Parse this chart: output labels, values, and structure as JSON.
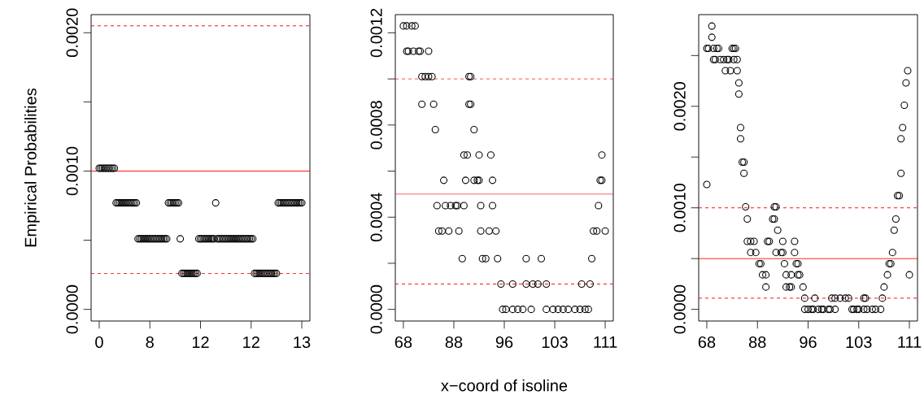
{
  "chart_data": [
    {
      "type": "scatter",
      "ylabel": "Empirical Probabilities",
      "color": "#000000",
      "marker": "circle",
      "categories": [
        "0",
        null,
        null,
        null,
        null,
        null,
        null,
        null,
        null,
        null,
        null,
        null,
        null,
        null,
        null,
        null,
        null,
        null,
        null,
        null,
        null,
        null,
        null,
        null,
        null,
        null,
        null,
        null,
        null,
        null,
        "8",
        null,
        null,
        null,
        null,
        null,
        null,
        null,
        null,
        null,
        null,
        null,
        null,
        null,
        null,
        null,
        null,
        null,
        null,
        null,
        null,
        null,
        null,
        null,
        null,
        null,
        null,
        null,
        null,
        null,
        "12",
        null,
        null,
        null,
        null,
        null,
        null,
        null,
        null,
        null,
        null,
        null,
        null,
        null,
        null,
        null,
        null,
        null,
        null,
        null,
        null,
        null,
        null,
        null,
        null,
        null,
        null,
        null,
        null,
        null,
        "12",
        null,
        null,
        null,
        null,
        null,
        null,
        null,
        null,
        null,
        null,
        null,
        null,
        null,
        null,
        null,
        null,
        null,
        null,
        null,
        null,
        null,
        null,
        null,
        null,
        null,
        null,
        null,
        null,
        null,
        "13"
      ],
      "values": [
        0.00102,
        0.00102,
        0.00102,
        0.00102,
        0.00102,
        0.00102,
        0.00102,
        0.00102,
        0.00102,
        0.00102,
        0.00077,
        0.00077,
        0.00077,
        0.00077,
        0.00077,
        0.00077,
        0.00077,
        0.00077,
        0.00077,
        0.00077,
        0.00077,
        0.00077,
        0.00077,
        0.00051,
        0.00051,
        0.00051,
        0.00051,
        0.00051,
        0.00051,
        0.00051,
        0.00051,
        0.00051,
        0.00051,
        0.00051,
        0.00051,
        0.00051,
        0.00051,
        0.00051,
        0.00051,
        0.00051,
        0.00051,
        0.00077,
        0.00077,
        0.00077,
        0.00077,
        0.00077,
        0.00077,
        0.00077,
        0.00051,
        0.00026,
        0.00026,
        0.00026,
        0.00026,
        0.00026,
        0.00026,
        0.00026,
        0.00026,
        0.00026,
        0.00026,
        0.00051,
        0.00051,
        0.00051,
        0.00051,
        0.00051,
        0.00051,
        0.00051,
        0.00051,
        0.00051,
        0.00051,
        0.00077,
        0.00051,
        0.00051,
        0.00051,
        0.00051,
        0.00051,
        0.00051,
        0.00051,
        0.00051,
        0.00051,
        0.00051,
        0.00051,
        0.00051,
        0.00051,
        0.00051,
        0.00051,
        0.00051,
        0.00051,
        0.00051,
        0.00051,
        0.00051,
        0.00051,
        0.00051,
        0.00026,
        0.00026,
        0.00026,
        0.00026,
        0.00026,
        0.00026,
        0.00026,
        0.00026,
        0.00026,
        0.00026,
        0.00026,
        0.00026,
        0.00026,
        0.00026,
        0.00077,
        0.00077,
        0.00077,
        0.00077,
        0.00077,
        0.00077,
        0.00077,
        0.00077,
        0.00077,
        0.00077,
        0.00077,
        0.00077,
        0.00077,
        0.00077,
        0.00077
      ],
      "ylim": [
        -8.43e-05,
        0.002131
      ],
      "yticks": [
        {
          "value": 0,
          "label": "0.0000"
        },
        {
          "value": 0.0005,
          "label": null
        },
        {
          "value": 0.001,
          "label": "0.0010"
        },
        {
          "value": 0.0015,
          "label": null
        },
        {
          "value": 0.002,
          "label": "0.0020"
        }
      ],
      "ref_lines": [
        {
          "axis": "y",
          "value": 0.001,
          "color": "#ff0000",
          "line_style": "solid"
        },
        {
          "axis": "y",
          "value": 0.00205,
          "color": "#ff0000",
          "line_style": "dashed"
        },
        {
          "axis": "y",
          "value": 0.00026,
          "color": "#ff0000",
          "line_style": "dashed"
        }
      ]
    },
    {
      "type": "scatter",
      "xlabel": "x−coord of isoline",
      "marker": "circle",
      "categories": [
        "68",
        null,
        null,
        null,
        null,
        null,
        null,
        null,
        null,
        null,
        null,
        null,
        null,
        null,
        null,
        null,
        null,
        null,
        null,
        null,
        null,
        null,
        null,
        null,
        null,
        null,
        null,
        null,
        null,
        null,
        "88",
        null,
        null,
        null,
        null,
        null,
        null,
        null,
        null,
        null,
        null,
        null,
        null,
        null,
        null,
        null,
        null,
        null,
        null,
        null,
        null,
        null,
        null,
        null,
        null,
        null,
        null,
        null,
        null,
        null,
        "96",
        null,
        null,
        null,
        null,
        null,
        null,
        null,
        null,
        null,
        null,
        null,
        null,
        null,
        null,
        null,
        null,
        null,
        null,
        null,
        null,
        null,
        null,
        null,
        null,
        null,
        null,
        null,
        null,
        null,
        "103",
        null,
        null,
        null,
        null,
        null,
        null,
        null,
        null,
        null,
        null,
        null,
        null,
        null,
        null,
        null,
        null,
        null,
        null,
        null,
        null,
        null,
        null,
        null,
        null,
        null,
        null,
        null,
        null,
        null,
        "111"
      ],
      "series": [
        {
          "color": "#000000",
          "values": [
            0.00123,
            null,
            0.00123,
            0.00112,
            null,
            0.00123,
            0.00112,
            0.00123,
            null,
            0.00112,
            0.00112,
            0.00101,
            null,
            0.00101,
            null,
            0.00112,
            null,
            0.00101,
            0.00089,
            0.00078,
            0.00045,
            0.00034,
            null,
            0.00034,
            0.00056,
            0.00045,
            null,
            0.00034,
            0.00045,
            null,
            null,
            0.00045,
            0.00045,
            0.00034,
            null,
            0.00022,
            0.00067,
            0.00056,
            0.00067,
            0.00101,
            0.00101,
            null,
            0.00078,
            null,
            0.00056,
            0.00067,
            0.00045,
            0.00022,
            null,
            0.00022,
            null,
            0.00034,
            0.00067,
            0.00056,
            null,
            0.00034,
            0.00022,
            null,
            0.00011,
            0,
            null,
            0,
            null,
            null,
            null,
            0.00011,
            null,
            null,
            0,
            null,
            null,
            0,
            null,
            0.00022,
            null,
            null,
            0,
            0.00011,
            null,
            null,
            0.00011,
            null,
            0.00022,
            null,
            null,
            0.00011,
            null,
            null,
            null,
            0,
            null,
            null,
            0,
            null,
            null,
            0,
            null,
            null,
            0,
            null,
            null,
            null,
            0,
            null,
            null,
            0,
            0.00011,
            null,
            0,
            null,
            0,
            0.00011,
            0.00022,
            0.00034,
            null,
            0.00034,
            0.00045,
            0.00056,
            0.00067,
            null,
            0.00034
          ]
        },
        {
          "color": "#000000",
          "values": [
            null,
            null,
            0.00112,
            null,
            null,
            null,
            null,
            null,
            null,
            null,
            null,
            0.00089,
            null,
            null,
            null,
            0.00101,
            null,
            null,
            null,
            null,
            null,
            null,
            null,
            null,
            null,
            null,
            null,
            null,
            null,
            null,
            null,
            null,
            null,
            null,
            null,
            null,
            0.00045,
            null,
            null,
            0.00089,
            0.00089,
            null,
            0.00056,
            null,
            null,
            0.00056,
            0.00034,
            null,
            null,
            null,
            null,
            null,
            null,
            0.00045,
            null,
            null,
            null,
            null,
            null,
            null,
            null,
            null,
            null,
            null,
            null,
            0,
            null,
            null,
            null,
            null,
            null,
            null,
            null,
            0.00011,
            null,
            null,
            null,
            null,
            null,
            null,
            null,
            null,
            null,
            null,
            null,
            0,
            null,
            null,
            null,
            null,
            null,
            null,
            null,
            null,
            null,
            null,
            null,
            null,
            null,
            null,
            null,
            null,
            null,
            null,
            null,
            null,
            null,
            null,
            null,
            null,
            null,
            null,
            null,
            null,
            null,
            null,
            null,
            null,
            0.00056,
            null,
            null
          ]
        }
      ],
      "ylim": [
        -5.06e-05,
        0.001279
      ],
      "yticks": [
        {
          "value": 0,
          "label": "0.0000"
        },
        {
          "value": 0.0002,
          "label": null
        },
        {
          "value": 0.0004,
          "label": "0.0004"
        },
        {
          "value": 0.0006,
          "label": null
        },
        {
          "value": 0.0008,
          "label": "0.0008"
        },
        {
          "value": 0.001,
          "label": null
        },
        {
          "value": 0.0012,
          "label": "0.0012"
        }
      ],
      "ref_lines": [
        {
          "axis": "y",
          "value": 0.0005,
          "color": "#ff0000",
          "line_style": "solid"
        },
        {
          "axis": "y",
          "value": 0.001,
          "color": "#ff0000",
          "line_style": "dashed"
        },
        {
          "axis": "y",
          "value": 0.00011,
          "color": "#ff0000",
          "line_style": "dashed"
        }
      ]
    },
    {
      "type": "scatter",
      "marker": "circle",
      "categories": [
        "68",
        null,
        null,
        null,
        null,
        null,
        null,
        null,
        null,
        null,
        null,
        null,
        null,
        null,
        null,
        null,
        null,
        null,
        null,
        null,
        null,
        null,
        null,
        null,
        null,
        null,
        null,
        null,
        null,
        null,
        "88",
        null,
        null,
        null,
        null,
        null,
        null,
        null,
        null,
        null,
        null,
        null,
        null,
        null,
        null,
        null,
        null,
        null,
        null,
        null,
        null,
        null,
        null,
        null,
        null,
        null,
        null,
        null,
        null,
        null,
        "96",
        null,
        null,
        null,
        null,
        null,
        null,
        null,
        null,
        null,
        null,
        null,
        null,
        null,
        null,
        null,
        null,
        null,
        null,
        null,
        null,
        null,
        null,
        null,
        null,
        null,
        null,
        null,
        null,
        null,
        "103",
        null,
        null,
        null,
        null,
        null,
        null,
        null,
        null,
        null,
        null,
        null,
        null,
        null,
        null,
        null,
        null,
        null,
        null,
        null,
        null,
        null,
        null,
        null,
        null,
        null,
        null,
        null,
        null,
        null,
        "111"
      ],
      "series": [
        {
          "color": "#000000",
          "values": [
            0.00257,
            0.00257,
            null,
            0.00279,
            0.00257,
            0.00246,
            0.00257,
            0.00257,
            0.00246,
            null,
            0.00246,
            0.00235,
            0.00246,
            0.00246,
            0.00235,
            0.00257,
            0.00257,
            0.00257,
            0.00246,
            0.00223,
            0.00179,
            0.00145,
            0.00145,
            0.00101,
            0.00089,
            null,
            0.00067,
            null,
            0.00067,
            0.00056,
            null,
            0.00045,
            0.00045,
            0.00034,
            null,
            0.00034,
            0.00067,
            0.00067,
            null,
            0.00089,
            0.00101,
            0.00101,
            0.00078,
            null,
            0.00056,
            0.00067,
            0.00045,
            0.00034,
            null,
            0.00022,
            0.00034,
            null,
            0.00067,
            0.00045,
            0.00045,
            0.00034,
            null,
            0.00022,
            0.00011,
            null,
            0,
            null,
            0,
            0,
            0.00011,
            null,
            0,
            null,
            0,
            0,
            null,
            null,
            0,
            0,
            0.00011,
            null,
            0.00011,
            null,
            null,
            0.00011,
            null,
            null,
            0.00011,
            null,
            0.00011,
            null,
            0,
            0,
            null,
            0,
            0,
            null,
            null,
            0.00011,
            0.00011,
            0,
            null,
            null,
            0,
            null,
            0,
            null,
            null,
            0,
            0.00011,
            0.00022,
            null,
            0.00034,
            0.00045,
            0.00045,
            0.00056,
            0.00078,
            0.00089,
            0.00112,
            0.00112,
            0.00168,
            0.00179,
            0.00201,
            0.00223,
            0.00235,
            0.00034
          ]
        },
        {
          "color": "#000000",
          "values": [
            0.00123,
            null,
            null,
            0.00268,
            0.00246,
            null,
            null,
            null,
            null,
            null,
            null,
            null,
            null,
            null,
            null,
            null,
            0.00246,
            null,
            0.00235,
            0.00212,
            0.00168,
            null,
            0.00134,
            null,
            0.00067,
            null,
            0.00056,
            null,
            null,
            null,
            null,
            null,
            null,
            null,
            null,
            0.00022,
            null,
            null,
            null,
            null,
            0.00089,
            0.00056,
            null,
            null,
            null,
            0.00056,
            null,
            0.00022,
            null,
            null,
            0.00022,
            null,
            0.00056,
            null,
            0.00034,
            null,
            null,
            null,
            0,
            null,
            null,
            null,
            null,
            null,
            null,
            null,
            null,
            null,
            null,
            null,
            null,
            null,
            null,
            null,
            null,
            null,
            0,
            null,
            null,
            null,
            null,
            null,
            null,
            null,
            null,
            null,
            null,
            null,
            null,
            null,
            null,
            null,
            null,
            0,
            null,
            null,
            null,
            null,
            null,
            null,
            null,
            null,
            null,
            null,
            null,
            null,
            null,
            null,
            null,
            null,
            null,
            null,
            null,
            null,
            null,
            0.00134,
            null,
            null,
            null,
            null,
            null
          ]
        }
      ],
      "ylim": [
        -0.000115,
        0.002903
      ],
      "yticks": [
        {
          "value": 0,
          "label": "0.0000"
        },
        {
          "value": 0.0005,
          "label": null
        },
        {
          "value": 0.001,
          "label": "0.0010"
        },
        {
          "value": 0.0015,
          "label": null
        },
        {
          "value": 0.002,
          "label": "0.0020"
        },
        {
          "value": 0.0025,
          "label": null
        }
      ],
      "ref_lines": [
        {
          "axis": "y",
          "value": 0.0005,
          "color": "#ff0000",
          "line_style": "solid"
        },
        {
          "axis": "y",
          "value": 0.001,
          "color": "#ff0000",
          "line_style": "dashed"
        },
        {
          "axis": "y",
          "value": 0.00011,
          "color": "#ff0000",
          "line_style": "dashed"
        }
      ]
    }
  ]
}
